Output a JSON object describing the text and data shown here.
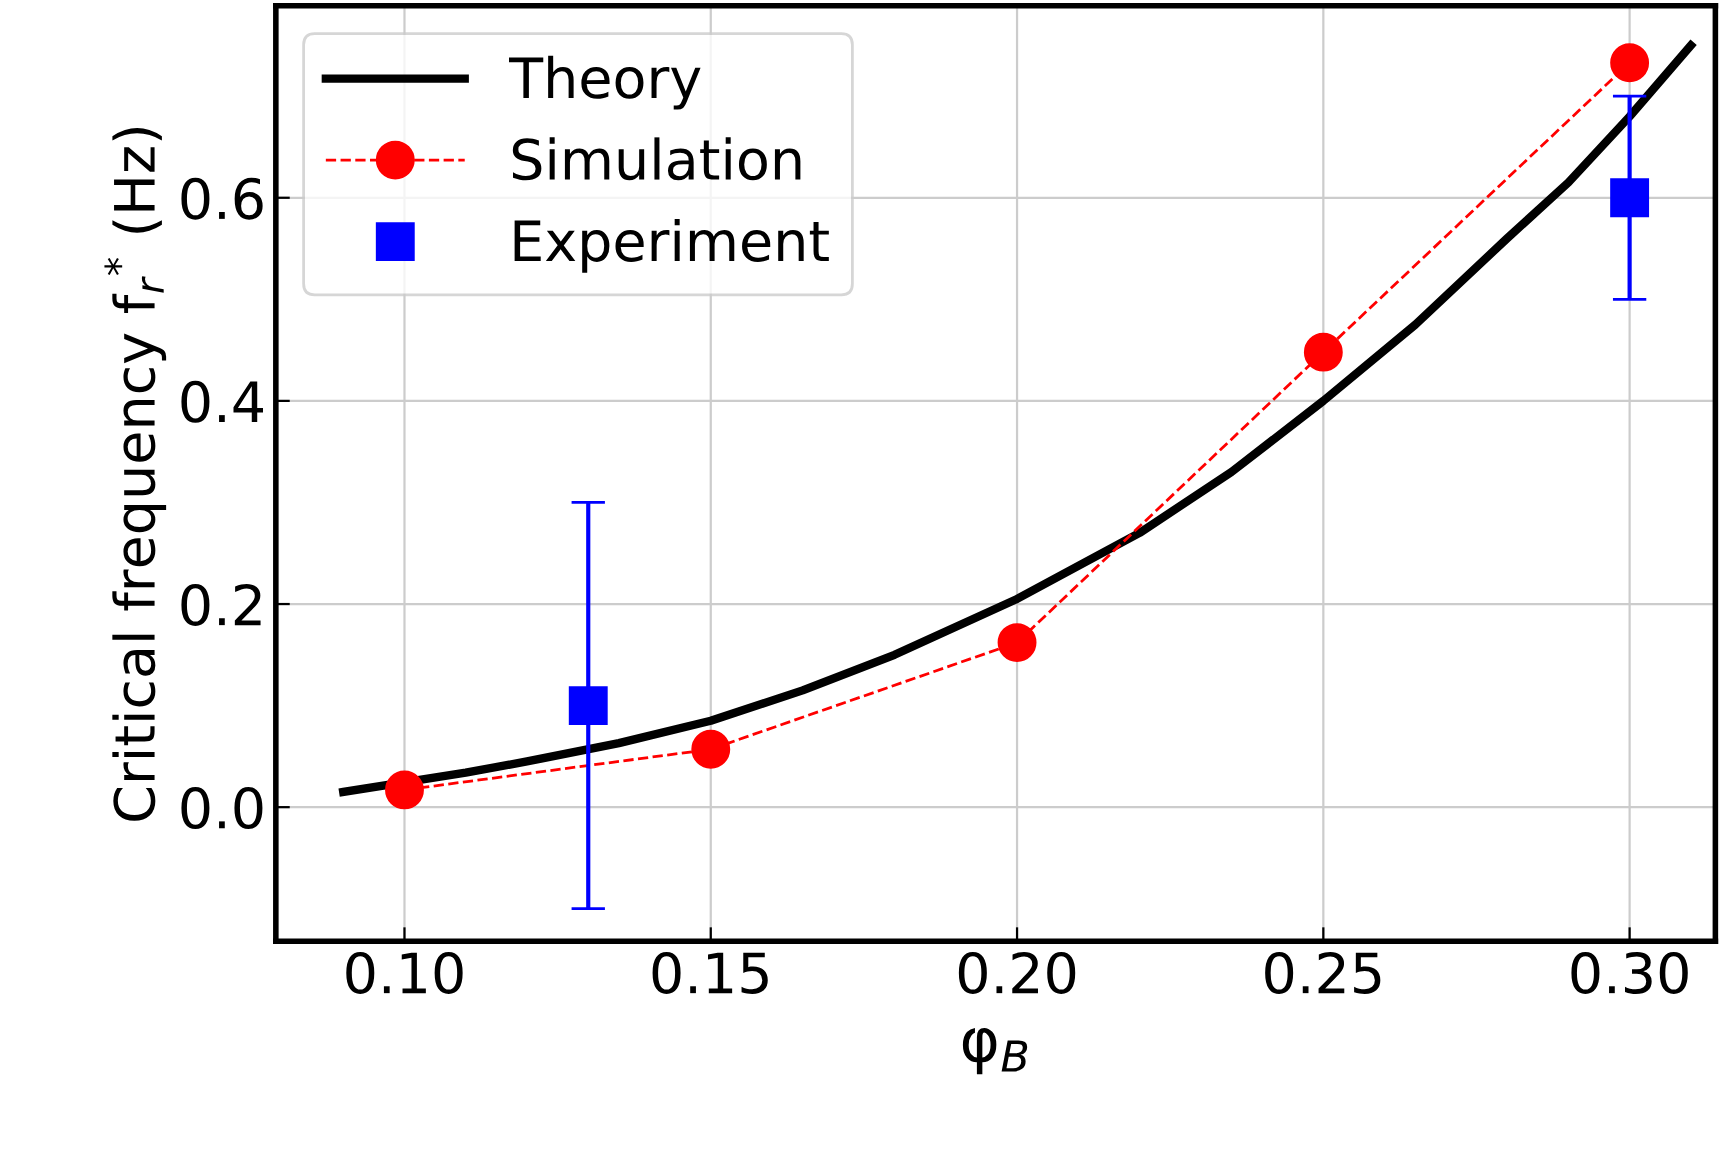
{
  "chart_data": {
    "type": "line",
    "xlabel": "φ$_{B}$",
    "ylabel": "Critical frequency f$_{r}$$^{*}$ (Hz)",
    "xlim": [
      0.079,
      0.314
    ],
    "ylim": [
      -0.132,
      0.789
    ],
    "xticks": [
      {
        "value": 0.1,
        "label": "0.10"
      },
      {
        "value": 0.15,
        "label": "0.15"
      },
      {
        "value": 0.2,
        "label": "0.20"
      },
      {
        "value": 0.25,
        "label": "0.25"
      },
      {
        "value": 0.3,
        "label": "0.30"
      }
    ],
    "yticks": [
      {
        "value": 0,
        "label": "0.0"
      },
      {
        "value": 0.2,
        "label": "0.2"
      },
      {
        "value": 0.4,
        "label": "0.4"
      },
      {
        "value": 0.6,
        "label": "0.6"
      }
    ],
    "grid": true,
    "legend": "top left",
    "series": [
      {
        "name": "Theory",
        "color": "#000000",
        "marker": "none",
        "line_style": "solid",
        "x": [
          0.09,
          0.11,
          0.12,
          0.135,
          0.15,
          0.165,
          0.18,
          0.2,
          0.22,
          0.235,
          0.25,
          0.265,
          0.28,
          0.29,
          0.3,
          0.31
        ],
        "values": [
          0.015,
          0.034,
          0.045,
          0.063,
          0.085,
          0.115,
          0.15,
          0.205,
          0.27,
          0.33,
          0.4,
          0.475,
          0.56,
          0.615,
          0.68,
          0.75
        ]
      },
      {
        "name": "Simulation",
        "color": "#ff0000",
        "marker": "circle",
        "line_style": "dashed",
        "x": [
          0.1,
          0.15,
          0.2,
          0.25,
          0.3
        ],
        "values": [
          0.017,
          0.057,
          0.162,
          0.448,
          0.733
        ]
      },
      {
        "name": "Experiment",
        "type": "scatter",
        "color": "#0000ff",
        "marker": "square",
        "x": [
          0.13,
          0.3
        ],
        "values": [
          0.1,
          0.6
        ],
        "errors": [
          0.2,
          0.1
        ]
      }
    ]
  }
}
